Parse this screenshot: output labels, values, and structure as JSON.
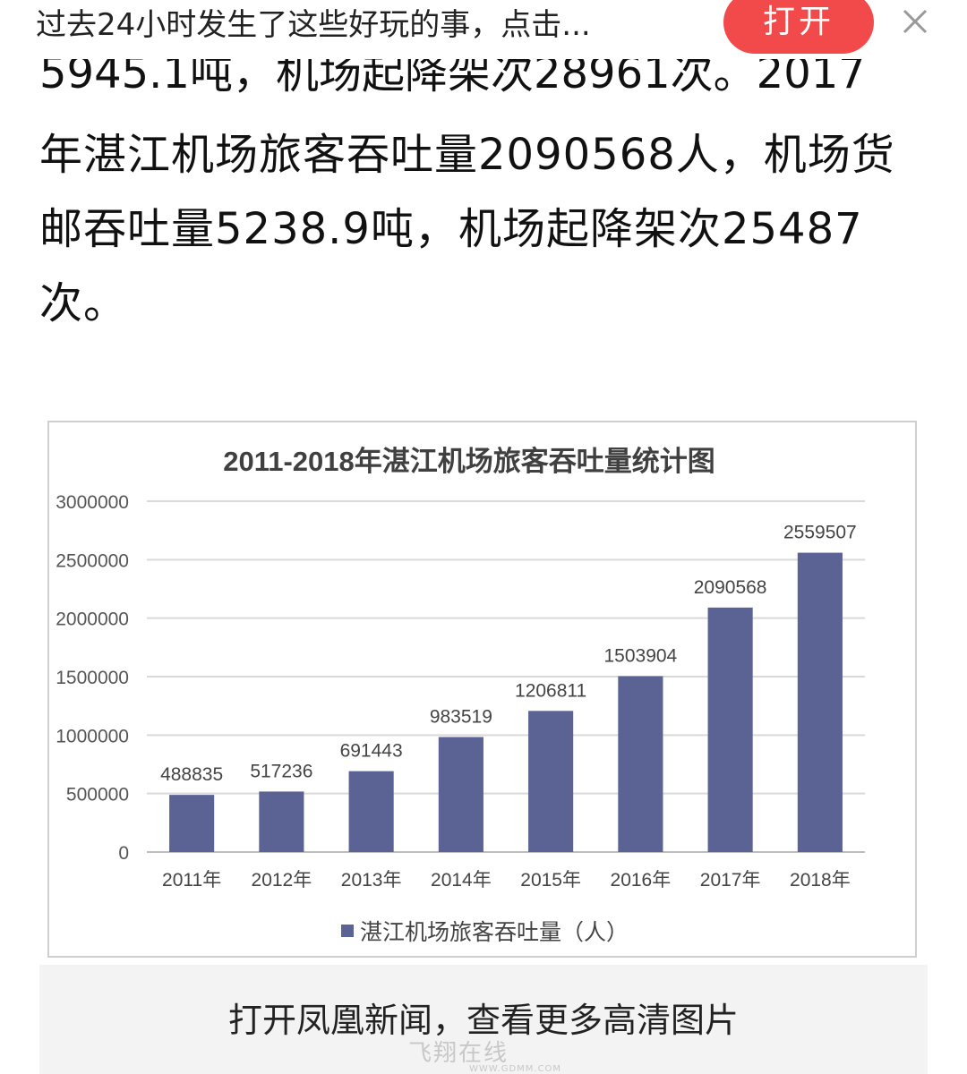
{
  "banner": {
    "text": "过去24小时发生了这些好玩的事，点击...",
    "open_label": "打开"
  },
  "article": {
    "cut_line": "5945.1吨，机场起降架次28961次。2017",
    "lines": [
      "年湛江机场旅客吞吐量2090568人，机场货",
      "邮吞吐量5238.9吨，机场起降架次25487",
      "次。"
    ]
  },
  "chart_data": {
    "type": "bar",
    "title": "2011-2018年湛江机场旅客吞吐量统计图",
    "categories": [
      "2011年",
      "2012年",
      "2013年",
      "2014年",
      "2015年",
      "2016年",
      "2017年",
      "2018年"
    ],
    "series": [
      {
        "name": "湛江机场旅客吞吐量（人）",
        "values": [
          488835,
          517236,
          691443,
          983519,
          1206811,
          1503904,
          2090568,
          2559507
        ],
        "color": "#5b6394"
      }
    ],
    "yticks": [
      0,
      500000,
      1000000,
      1500000,
      2000000,
      2500000,
      3000000
    ],
    "ylim": [
      0,
      3000000
    ],
    "grid": true,
    "legend": "bottom"
  },
  "bottom_banner": {
    "text": "打开凤凰新闻，查看更多高清图片"
  },
  "watermark": {
    "text": "飞翔在线",
    "url": "WWW.GDMM.COM"
  }
}
